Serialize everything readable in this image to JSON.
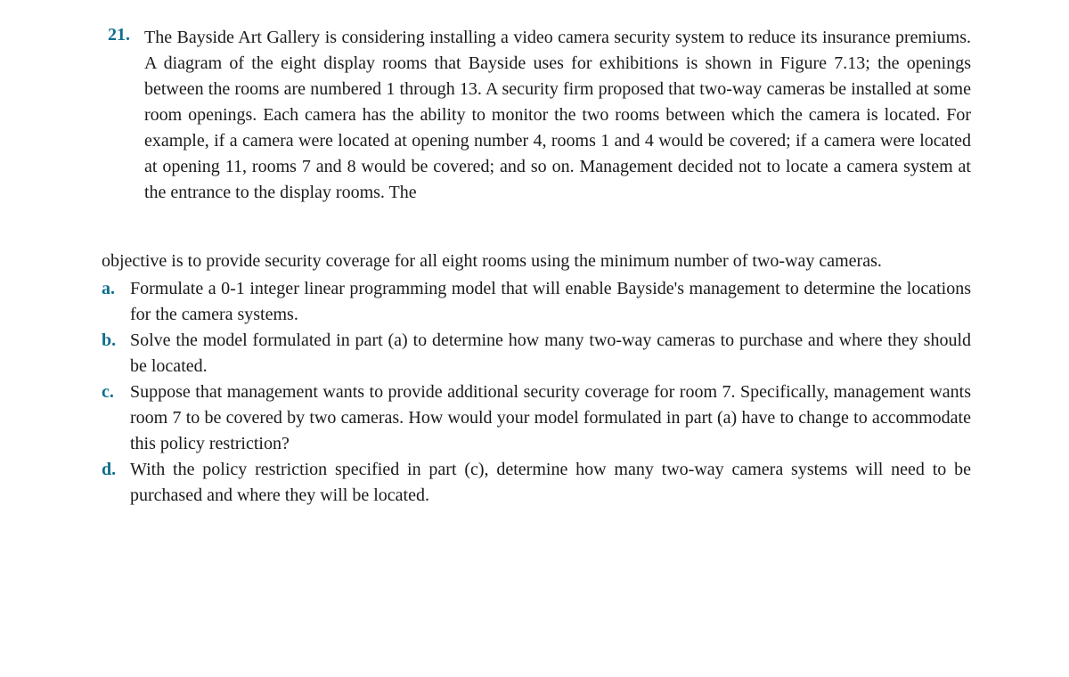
{
  "colors": {
    "accent": "#0d6e8c",
    "text": "#1a1a1a",
    "background": "#ffffff"
  },
  "typography": {
    "font_family": "Georgia, 'Times New Roman', serif",
    "body_size_pt": 15,
    "line_height": 1.45,
    "alignment": "justify"
  },
  "question": {
    "number": "21.",
    "intro": "The Bayside Art Gallery is considering installing a video camera security system to reduce its insurance premiums. A diagram of the eight display rooms that Bayside uses for exhibitions is shown in Figure 7.13; the openings between the rooms are numbered 1 through 13. A security firm proposed that two-way cameras be installed at some room openings. Each camera has the ability to monitor the two rooms between which the camera is located. For example, if a camera were located at opening number 4, rooms 1 and 4 would be covered; if a camera were located at opening 11, rooms 7 and 8 would be covered; and so on. Management decided not to locate a camera system at the entrance to the display rooms. The",
    "continuation": "objective is to provide security coverage for all eight rooms using the minimum number of two-way cameras.",
    "parts": [
      {
        "label": "a.",
        "text": "Formulate a 0-1 integer linear programming model that will enable Bayside's management to determine the locations for the camera systems."
      },
      {
        "label": "b.",
        "text": "Solve the model formulated in part (a) to determine how many two-way cameras to purchase and where they should be located."
      },
      {
        "label": "c.",
        "text": "Suppose that management wants to provide additional security coverage for room 7. Specifically, management wants room 7 to be covered by two cameras. How would your model formulated in part (a) have to change to accommodate this policy restriction?"
      },
      {
        "label": "d.",
        "text": "With the policy restriction specified in part (c), determine how many two-way camera systems will need to be purchased and where they will be located."
      }
    ]
  }
}
